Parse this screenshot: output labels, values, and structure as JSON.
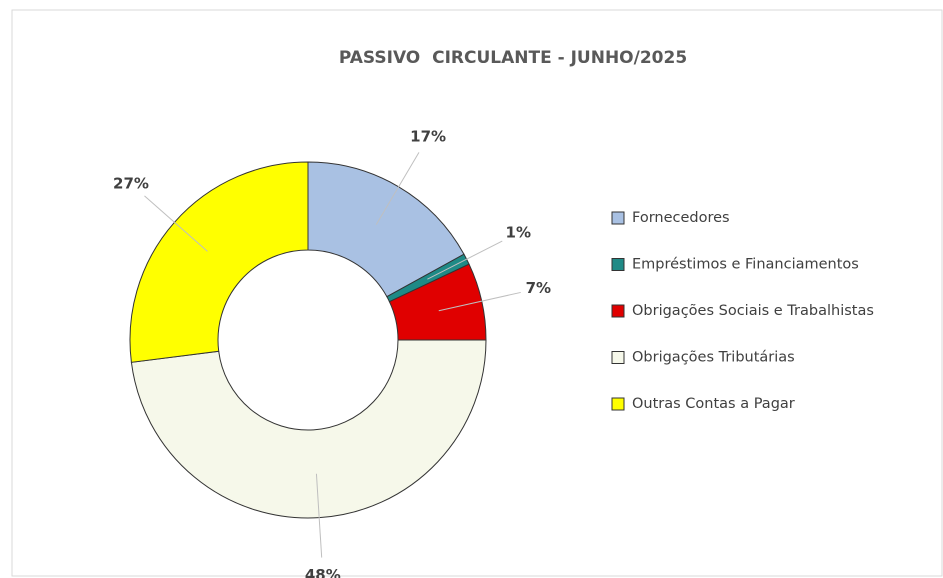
{
  "chart_data": {
    "type": "donut",
    "title": "PASSIVO  CIRCULANTE - JUNHO/2025",
    "categories": [
      "Fornecedores",
      "Empréstimos e Financiamentos",
      "Obrigações Sociais e Trabalhistas",
      "Obrigações Tributárias",
      "Outras Contas a Pagar"
    ],
    "values": [
      17,
      1,
      7,
      48,
      27
    ],
    "value_labels": [
      "17%",
      "1%",
      "7%",
      "48%",
      "27%"
    ],
    "colors": [
      "#a9c1e3",
      "#1f8a86",
      "#e00000",
      "#f6f8ea",
      "#ffff00"
    ],
    "legend": "right"
  }
}
